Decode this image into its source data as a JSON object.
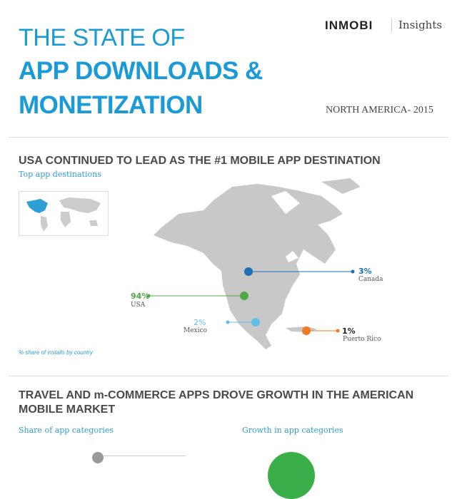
{
  "header": {
    "title_line1": "THE STATE OF",
    "title_line2": "APP DOWNLOADS &",
    "title_line3": "MONETIZATION",
    "logo": "INMOBI",
    "logo_suffix": "Insights",
    "region": "NORTH AMERICA- 2015"
  },
  "section1": {
    "heading": "USA CONTINUED TO LEAD AS THE #1 MOBILE APP DESTINATION",
    "subheading": "Top app destinations",
    "note": "% share of installs by country",
    "countries": [
      {
        "name": "Canada",
        "share": "3%",
        "color": "#1f6fb8"
      },
      {
        "name": "USA",
        "share": "94%",
        "color": "#4fa846"
      },
      {
        "name": "Mexico",
        "share": "2%",
        "color": "#62bde6"
      },
      {
        "name": "Puerto Rico",
        "share": "1%",
        "color": "#f07a22"
      }
    ]
  },
  "section2": {
    "heading_line1": "TRAVEL AND m-COMMERCE APPS DROVE GROWTH IN THE AMERICAN",
    "heading_line2": "MOBILE MARKET",
    "left_subheading": "Share of app categories",
    "right_subheading": "Growth in app categories"
  },
  "colors": {
    "accent": "#1a9ad6",
    "map": "#c8c8c8"
  }
}
